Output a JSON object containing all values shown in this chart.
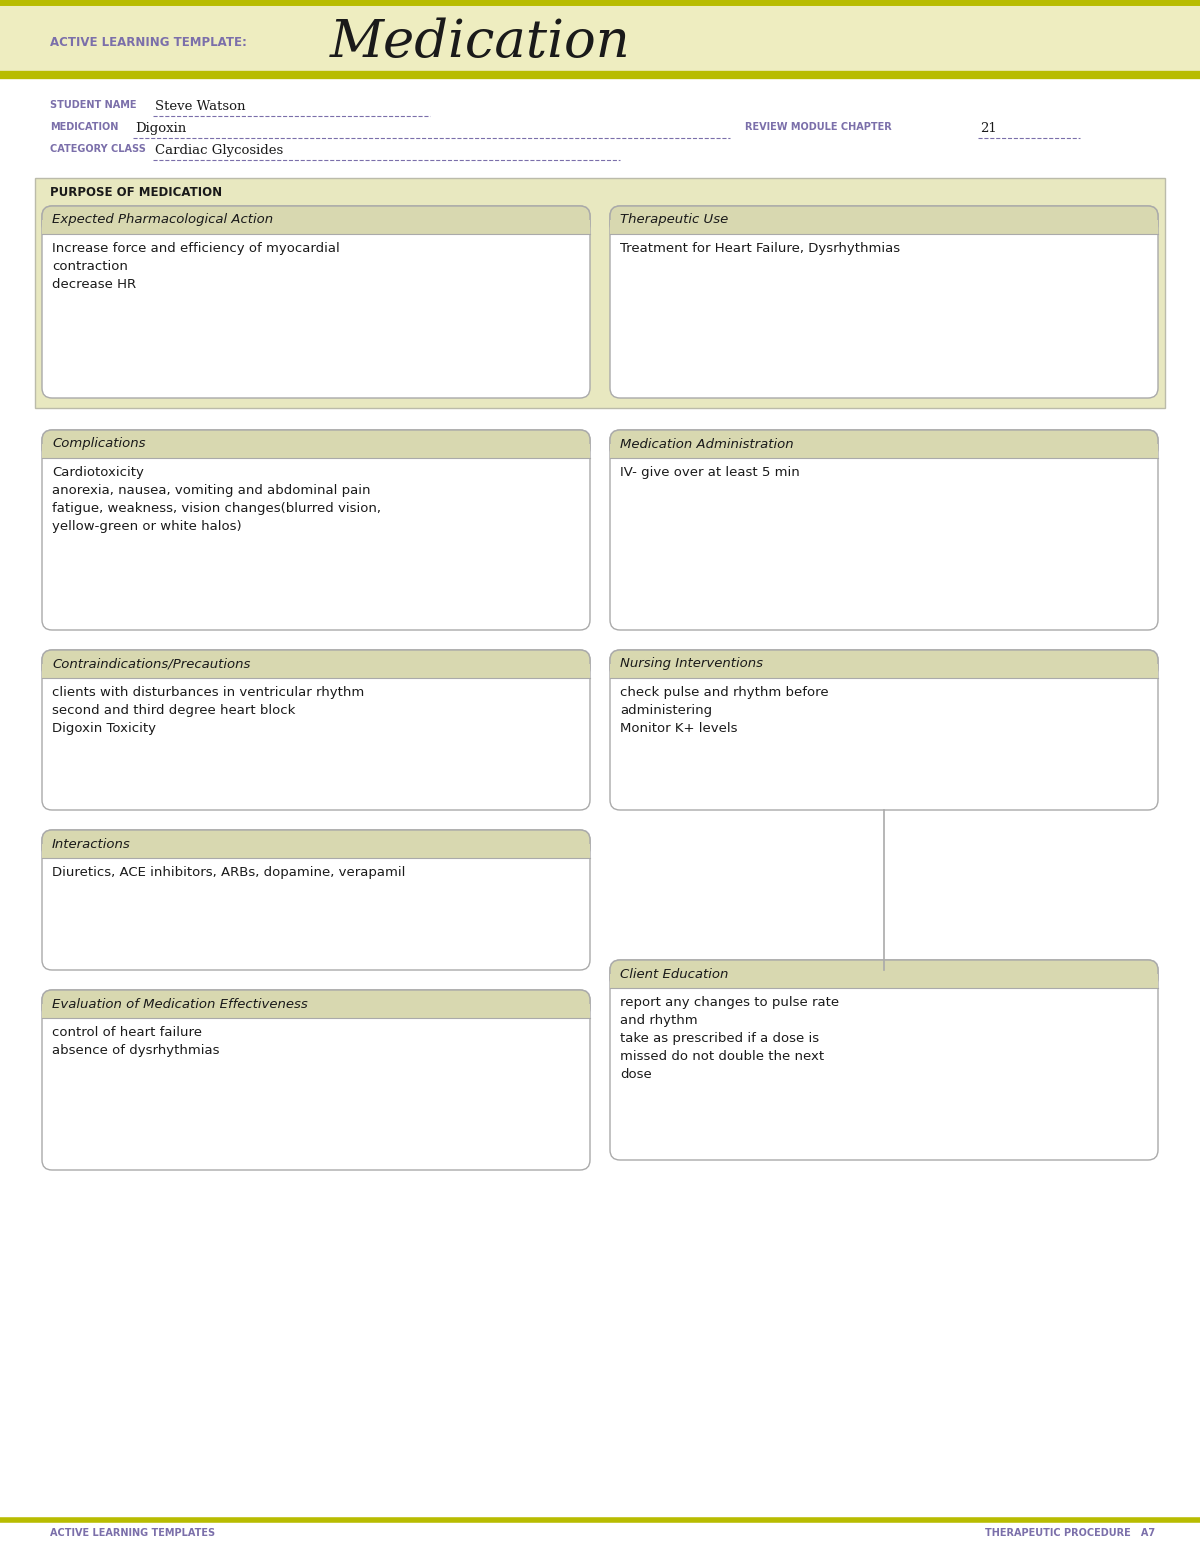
{
  "bg_color": "#ffffff",
  "white": "#ffffff",
  "header_bg": "#eeedc0",
  "box_bg": "#ffffff",
  "box_border": "#aaaaaa",
  "section_header_bg": "#d4d49a",
  "olive_line": "#b8bc00",
  "purple_label": "#7b6faa",
  "dark_text": "#1a1a1a",
  "title_text": "Medication",
  "template_label": "ACTIVE LEARNING TEMPLATE:",
  "student_name_label": "STUDENT NAME",
  "student_name_value": "Steve Watson",
  "medication_label": "MEDICATION",
  "medication_value": "Digoxin",
  "review_label": "REVIEW MODULE CHAPTER",
  "review_value": "21",
  "category_label": "CATEGORY CLASS",
  "category_value": "Cardiac Glycosides",
  "purpose_label": "PURPOSE OF MEDICATION",
  "box1_title": "Expected Pharmacological Action",
  "box1_content": "Increase force and efficiency of myocardial\ncontraction\ndecrease HR",
  "box2_title": "Therapeutic Use",
  "box2_content": "Treatment for Heart Failure, Dysrhythmias",
  "box3_title": "Complications",
  "box3_content": "Cardiotoxicity\nanorexia, nausea, vomiting and abdominal pain\nfatigue, weakness, vision changes(blurred vision,\nyellow-green or white halos)",
  "box4_title": "Medication Administration",
  "box4_content": "IV- give over at least 5 min",
  "box5_title": "Contraindications/Precautions",
  "box5_content": "clients with disturbances in ventricular rhythm\nsecond and third degree heart block\nDigoxin Toxicity",
  "box6_title": "Nursing Interventions",
  "box6_content": "check pulse and rhythm before\nadministering\nMonitor K+ levels",
  "box7_title": "Interactions",
  "box7_content": "Diuretics, ACE inhibitors, ARBs, dopamine, verapamil",
  "box8_title": "Client Education",
  "box8_content": "report any changes to pulse rate\nand rhythm\ntake as prescribed if a dose is\nmissed do not double the next\ndose",
  "box9_title": "Evaluation of Medication Effectiveness",
  "box9_content": "control of heart failure\nabsence of dysrhythmias",
  "footer_left": "ACTIVE LEARNING TEMPLATES",
  "footer_right": "THERAPEUTIC PROCEDURE   A7"
}
